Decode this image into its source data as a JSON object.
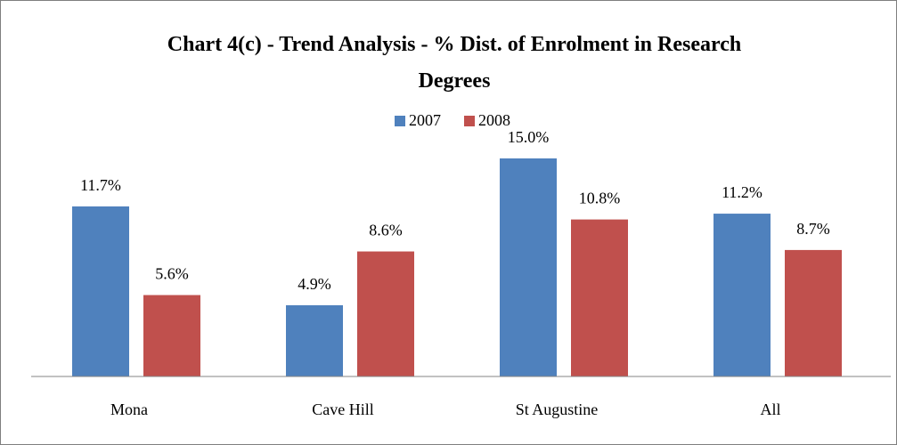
{
  "chart_data": {
    "type": "bar",
    "title": "Chart 4(c) - Trend Analysis - % Dist. of Enrolment in Research Degrees",
    "categories": [
      "Mona",
      "Cave Hill",
      "St Augustine",
      "All"
    ],
    "series": [
      {
        "name": "2007",
        "color": "#4f81bd",
        "values": [
          11.7,
          4.9,
          15.0,
          11.2
        ],
        "value_labels": [
          "11.7%",
          "4.9%",
          "15.0%",
          "11.2%"
        ]
      },
      {
        "name": "2008",
        "color": "#c0504d",
        "values": [
          5.6,
          8.6,
          10.8,
          8.7
        ],
        "value_labels": [
          "5.6%",
          "8.6%",
          "10.8%",
          "8.7%"
        ]
      }
    ],
    "legend": "top"
  }
}
